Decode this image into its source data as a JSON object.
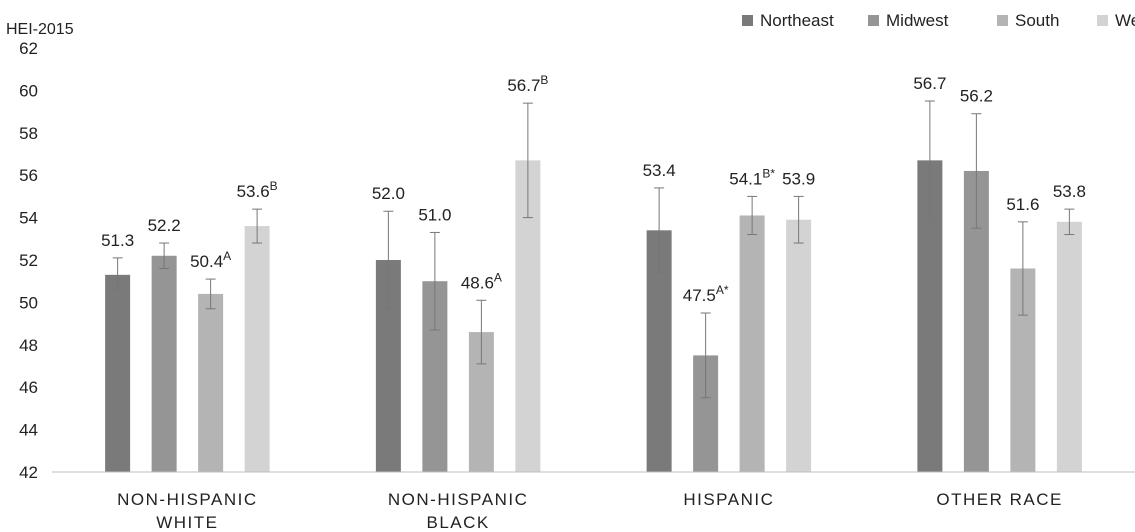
{
  "chart_data": {
    "type": "bar",
    "ylabel": "HEI-2015",
    "ylim": [
      42,
      62
    ],
    "yticks": [
      42,
      44,
      46,
      48,
      50,
      52,
      54,
      56,
      58,
      60,
      62
    ],
    "grid": false,
    "legend_position": "top-right",
    "categories": [
      {
        "line1": "NON-HISPANIC",
        "line2": "WHITE"
      },
      {
        "line1": "NON-HISPANIC",
        "line2": "BLACK"
      },
      {
        "line1": "HISPANIC",
        "line2": ""
      },
      {
        "line1": "OTHER RACE",
        "line2": ""
      }
    ],
    "series": [
      {
        "name": "Northeast",
        "color": "#7a7a7a",
        "values": [
          51.3,
          52.0,
          53.4,
          56.7
        ],
        "error_low": [
          50.6,
          49.7,
          51.4,
          53.9
        ],
        "error_high": [
          52.1,
          54.3,
          55.4,
          59.5
        ],
        "labels": [
          "51.3",
          "52.0",
          "53.4",
          "56.7"
        ],
        "label_sup": [
          "",
          "",
          "",
          ""
        ]
      },
      {
        "name": "Midwest",
        "color": "#959595",
        "values": [
          52.2,
          51.0,
          47.5,
          56.2
        ],
        "error_low": [
          51.6,
          48.7,
          45.5,
          53.5
        ],
        "error_high": [
          52.8,
          53.3,
          49.5,
          58.9
        ],
        "labels": [
          "52.2",
          "51.0",
          "47.5",
          "56.2"
        ],
        "label_sup": [
          "",
          "",
          "A*",
          ""
        ]
      },
      {
        "name": "South",
        "color": "#b4b4b4",
        "values": [
          50.4,
          48.6,
          54.1,
          51.6
        ],
        "error_low": [
          49.7,
          47.1,
          53.2,
          49.4
        ],
        "error_high": [
          51.1,
          50.1,
          55.0,
          53.8
        ],
        "labels": [
          "50.4",
          "48.6",
          "54.1",
          "51.6"
        ],
        "label_sup": [
          "A",
          "A",
          "B*",
          ""
        ]
      },
      {
        "name": "West",
        "color": "#d3d3d3",
        "values": [
          53.6,
          56.7,
          53.9,
          53.8
        ],
        "error_low": [
          52.8,
          54.0,
          52.8,
          53.2
        ],
        "error_high": [
          54.4,
          59.4,
          55.0,
          54.4
        ],
        "labels": [
          "53.6",
          "56.7",
          "53.9",
          "53.8"
        ],
        "label_sup": [
          "B",
          "B",
          "",
          ""
        ]
      }
    ]
  }
}
